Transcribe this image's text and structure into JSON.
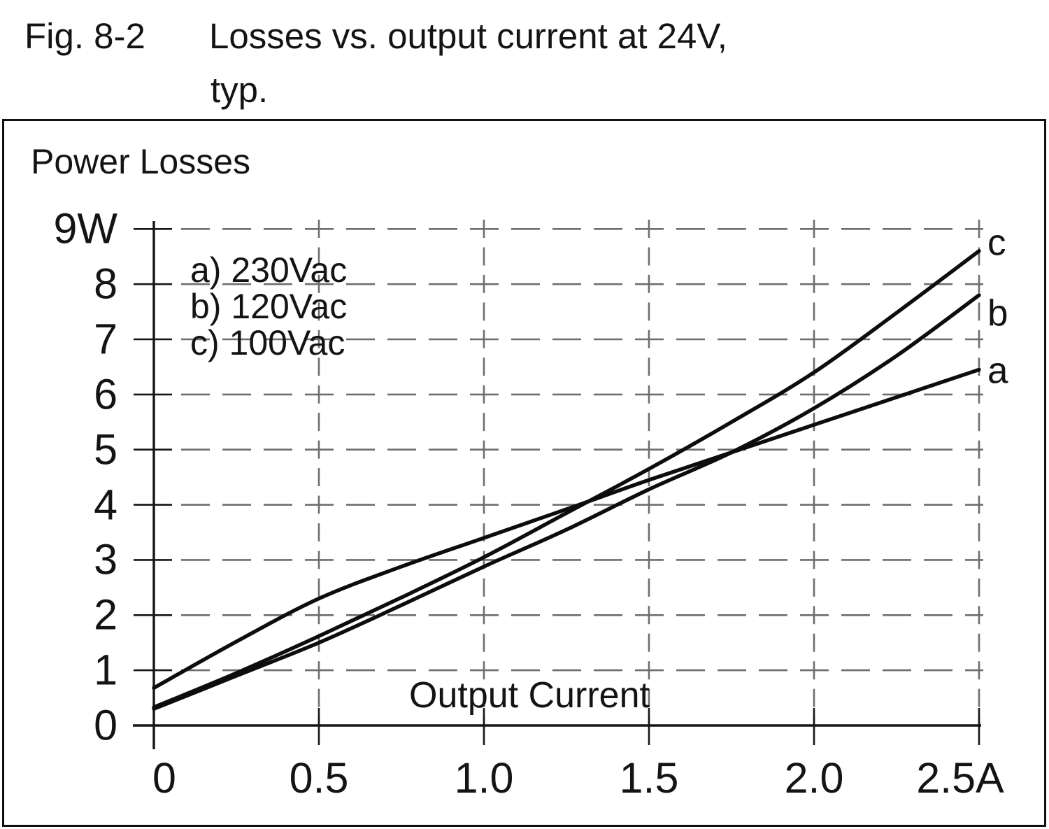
{
  "figure": {
    "label": "Fig. 8-2",
    "caption_line1": "Losses vs. output current at 24V,",
    "caption_line2": "typ."
  },
  "chart_data": {
    "type": "line",
    "title": "Losses vs. output current at 24V, typ.",
    "ylabel": "Power Losses",
    "xlabel": "Output Current",
    "x_unit": "A",
    "y_unit": "W",
    "xlim": [
      0,
      2.5
    ],
    "ylim": [
      0,
      9
    ],
    "grid": "dashed",
    "legend_position": "upper-left-inside",
    "legend": [
      "a) 230Vac",
      "b) 120Vac",
      "c) 100Vac"
    ],
    "x_ticks": {
      "labels": [
        "0",
        "0.5",
        "1.0",
        "1.5",
        "2.0",
        "2.5A"
      ],
      "values": [
        0,
        0.5,
        1.0,
        1.5,
        2.0,
        2.5
      ]
    },
    "y_ticks": {
      "labels": [
        "9W",
        "8",
        "7",
        "6",
        "5",
        "4",
        "3",
        "2",
        "1",
        "0"
      ],
      "values": [
        9,
        8,
        7,
        6,
        5,
        4,
        3,
        2,
        1,
        0
      ]
    },
    "x": [
      0,
      0.25,
      0.5,
      0.75,
      1.0,
      1.25,
      1.5,
      1.75,
      2.0,
      2.25,
      2.5
    ],
    "series": [
      {
        "name": "a",
        "ac_input": "230Vac",
        "end_label": "a",
        "values": [
          0.68,
          1.52,
          2.3,
          2.88,
          3.4,
          3.92,
          4.45,
          4.95,
          5.45,
          5.95,
          6.45
        ]
      },
      {
        "name": "b",
        "ac_input": "120Vac",
        "end_label": "b",
        "values": [
          0.3,
          0.9,
          1.5,
          2.18,
          2.88,
          3.55,
          4.28,
          4.95,
          5.75,
          6.7,
          7.8
        ]
      },
      {
        "name": "c",
        "ac_input": "100Vac",
        "end_label": "c",
        "values": [
          0.33,
          0.95,
          1.62,
          2.32,
          3.05,
          3.85,
          4.65,
          5.5,
          6.4,
          7.48,
          8.6
        ]
      }
    ],
    "colors": {
      "line": "#0d0d0d",
      "grid": "#6e6e6e",
      "text": "#141414",
      "frame": "#111111"
    }
  }
}
